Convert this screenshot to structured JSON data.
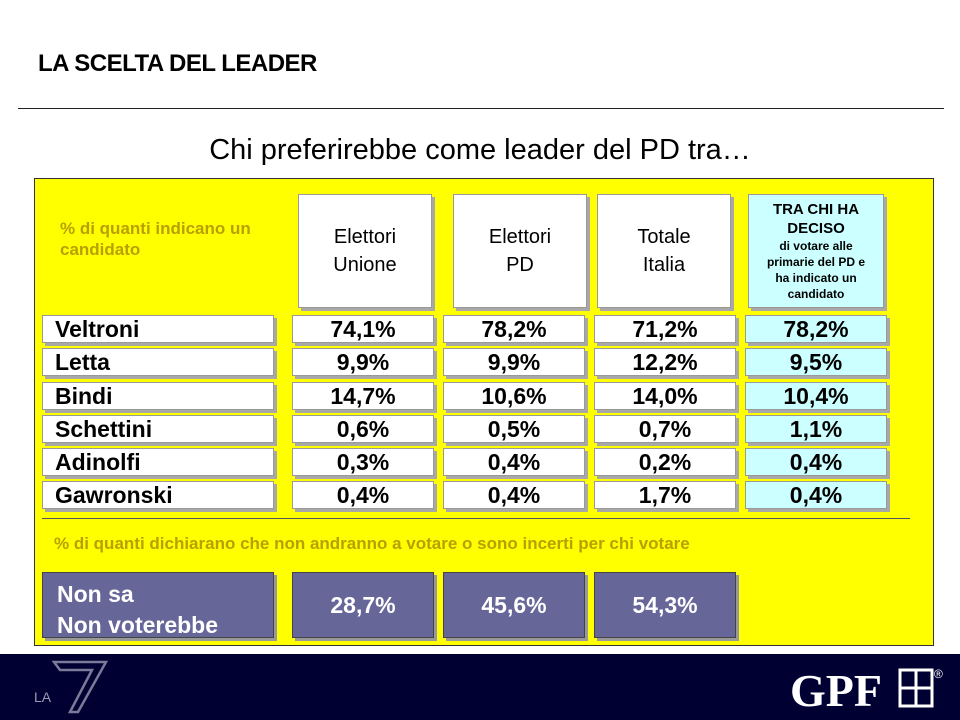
{
  "slide": {
    "title": "LA SCELTA DEL LEADER",
    "question": "Chi preferirebbe come leader del PD tra…"
  },
  "table": {
    "note": "% di quanti indicano un candidato",
    "columns": [
      {
        "line1": "Elettori",
        "line2": "Unione"
      },
      {
        "line1": "Elettori",
        "line2": "PD"
      },
      {
        "line1": "Totale",
        "line2": "Italia"
      }
    ],
    "highlight_column": {
      "line1": "TRA CHI HA",
      "line2": "DECISO",
      "line3": "di votare alle",
      "line4": "primarie del PD e",
      "line5": "ha indicato un",
      "line6": "candidato"
    },
    "rows": [
      {
        "name": "Veltroni",
        "values": [
          "74,1%",
          "78,2%",
          "71,2%",
          "78,2%"
        ]
      },
      {
        "name": "Letta",
        "values": [
          "9,9%",
          "9,9%",
          "12,2%",
          "9,5%"
        ]
      },
      {
        "name": "Bindi",
        "values": [
          "14,7%",
          "10,6%",
          "14,0%",
          "10,4%"
        ]
      },
      {
        "name": "Schettini",
        "values": [
          "0,6%",
          "0,5%",
          "0,7%",
          "1,1%"
        ]
      },
      {
        "name": "Adinolfi",
        "values": [
          "0,3%",
          "0,4%",
          "0,2%",
          "0,4%"
        ]
      },
      {
        "name": "Gawronski",
        "values": [
          "0,4%",
          "0,4%",
          "1,7%",
          "0,4%"
        ]
      }
    ]
  },
  "undecided": {
    "note": "% di quanti dichiarano che non andranno a votare o sono incerti per chi votare",
    "label_line1": "Non sa",
    "label_line2": "Non voterebbe",
    "values": [
      "28,7%",
      "45,6%",
      "54,3%"
    ]
  },
  "footer": {
    "left_logo": "LA",
    "right_logo": "GPF",
    "registered_mark": "®"
  },
  "colors": {
    "panel": "#ffff00",
    "note_text": "#b8a000",
    "highlight_column": "#ccffff",
    "undecided_box": "#666699",
    "footer": "#000033"
  }
}
